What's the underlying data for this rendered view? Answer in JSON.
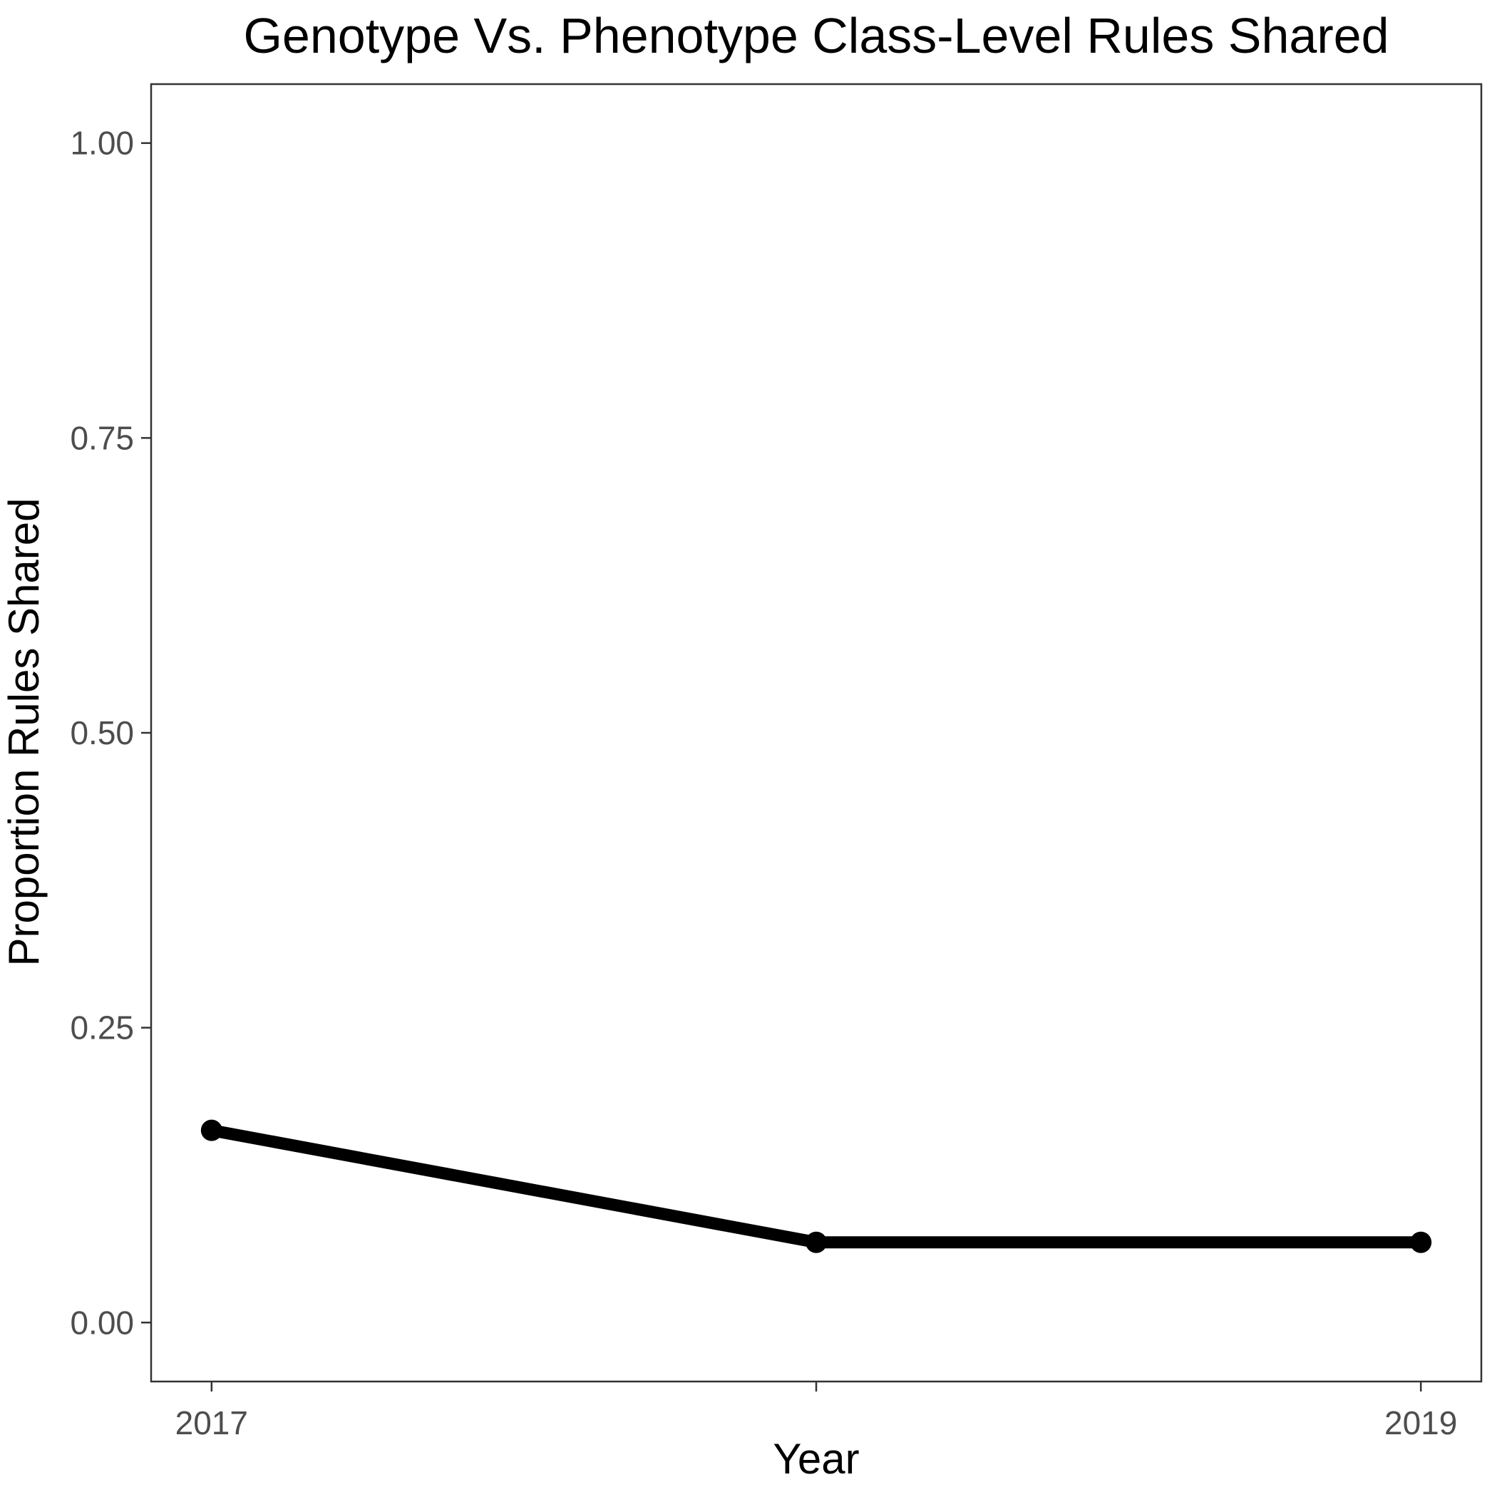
{
  "chart_data": {
    "type": "line",
    "title": "Genotype Vs. Phenotype Class-Level Rules Shared",
    "xlabel": "Year",
    "ylabel": "Proportion Rules Shared",
    "x": [
      2017,
      2018,
      2019
    ],
    "x_tick_labels": [
      {
        "value": 2017,
        "label": "2017"
      },
      {
        "value": 2019,
        "label": "2019"
      }
    ],
    "y_ticks": [
      {
        "value": 0.0,
        "label": "0.00"
      },
      {
        "value": 0.25,
        "label": "0.25"
      },
      {
        "value": 0.5,
        "label": "0.50"
      },
      {
        "value": 0.75,
        "label": "0.75"
      },
      {
        "value": 1.0,
        "label": "1.00"
      }
    ],
    "xlim": [
      2016.9,
      2019.1
    ],
    "ylim": [
      -0.05,
      1.05
    ],
    "series": [
      {
        "values": [
          0.163,
          0.068,
          0.068
        ],
        "color": "#000000"
      }
    ],
    "grid": false,
    "legend": "none"
  }
}
